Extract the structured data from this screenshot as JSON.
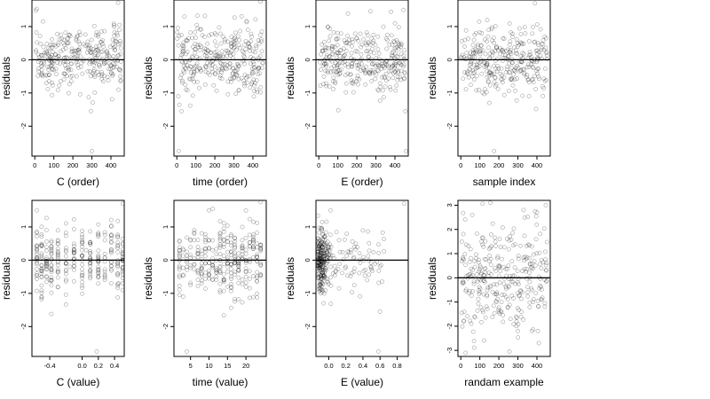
{
  "chart_data": [
    {
      "type": "scatter",
      "xlabel": "C (order)",
      "ylabel": "residuals",
      "x_ticks": [
        0,
        100,
        200,
        300,
        400
      ],
      "x_tick_labels": [
        "0",
        "100",
        "200",
        "300",
        "400"
      ],
      "xlim": [
        -15,
        470
      ],
      "y_ticks": [
        1,
        0,
        -1,
        -2
      ],
      "y_tick_labels": [
        "1",
        "0",
        "-1",
        "-2"
      ],
      "ylim": [
        -2.9,
        1.8
      ],
      "reference_line": 0,
      "point_color": "#000000",
      "points": [
        {
          "x": 5,
          "y": 1.48
        },
        {
          "x": 12,
          "y": 0.52
        },
        {
          "x": 20,
          "y": -0.35
        },
        {
          "x": 30,
          "y": 0.48
        },
        {
          "x": 60,
          "y": 0.25
        },
        {
          "x": 95,
          "y": -0.12
        },
        {
          "x": 130,
          "y": 0.62
        },
        {
          "x": 180,
          "y": -0.28
        },
        {
          "x": 210,
          "y": 0.18
        },
        {
          "x": 250,
          "y": -0.42
        },
        {
          "x": 275,
          "y": 0.22
        },
        {
          "x": 295,
          "y": -1.55
        },
        {
          "x": 300,
          "y": -2.75
        },
        {
          "x": 330,
          "y": 0.3
        },
        {
          "x": 360,
          "y": -0.65
        },
        {
          "x": 410,
          "y": 0.45
        },
        {
          "x": 438,
          "y": 1.72
        },
        {
          "x": 445,
          "y": 1.05
        },
        {
          "x": 450,
          "y": -0.5
        }
      ]
    },
    {
      "type": "scatter",
      "xlabel": "time (order)",
      "ylabel": "residuals",
      "x_ticks": [
        0,
        100,
        200,
        300,
        400
      ],
      "x_tick_labels": [
        "0",
        "100",
        "200",
        "300",
        "400"
      ],
      "xlim": [
        -15,
        470
      ],
      "y_ticks": [
        1,
        0,
        -1,
        -2
      ],
      "y_tick_labels": [
        "1",
        "0",
        "-1",
        "-2"
      ],
      "ylim": [
        -2.9,
        1.8
      ],
      "reference_line": 0,
      "point_color": "#000000",
      "points": [
        {
          "x": 8,
          "y": -1.1
        },
        {
          "x": 25,
          "y": -1.55
        },
        {
          "x": 40,
          "y": 1.3
        },
        {
          "x": 70,
          "y": -0.2
        },
        {
          "x": 110,
          "y": 0.45
        },
        {
          "x": 150,
          "y": -0.75
        },
        {
          "x": 200,
          "y": 0.55
        },
        {
          "x": 240,
          "y": -0.3
        },
        {
          "x": 280,
          "y": 0.2
        },
        {
          "x": 340,
          "y": -0.55
        },
        {
          "x": 380,
          "y": 0.4
        },
        {
          "x": 420,
          "y": -0.9
        },
        {
          "x": 440,
          "y": 1.75
        },
        {
          "x": 455,
          "y": -0.1
        },
        {
          "x": 10,
          "y": -2.75
        }
      ]
    },
    {
      "type": "scatter",
      "xlabel": "E (order)",
      "ylabel": "residuals",
      "x_ticks": [
        0,
        100,
        200,
        300,
        400
      ],
      "x_tick_labels": [
        "0",
        "100",
        "200",
        "300",
        "400"
      ],
      "xlim": [
        -15,
        470
      ],
      "y_ticks": [
        1,
        0,
        -1,
        -2
      ],
      "y_tick_labels": [
        "1",
        "0",
        "-1",
        "-2"
      ],
      "ylim": [
        -2.9,
        1.8
      ],
      "reference_line": 0,
      "point_color": "#000000",
      "points": [
        {
          "x": 10,
          "y": -0.3
        },
        {
          "x": 50,
          "y": 0.35
        },
        {
          "x": 100,
          "y": -0.45
        },
        {
          "x": 160,
          "y": 0.6
        },
        {
          "x": 210,
          "y": -0.2
        },
        {
          "x": 260,
          "y": 0.1
        },
        {
          "x": 310,
          "y": -0.9
        },
        {
          "x": 360,
          "y": 0.75
        },
        {
          "x": 400,
          "y": 1.1
        },
        {
          "x": 445,
          "y": 1.5
        },
        {
          "x": 455,
          "y": -1.55
        },
        {
          "x": 458,
          "y": -2.75
        }
      ]
    },
    {
      "type": "scatter",
      "xlabel": "sample index",
      "ylabel": "residuals",
      "x_ticks": [
        0,
        100,
        200,
        300,
        400
      ],
      "x_tick_labels": [
        "0",
        "100",
        "200",
        "300",
        "400"
      ],
      "xlim": [
        -15,
        470
      ],
      "y_ticks": [
        1,
        0,
        -1,
        -2
      ],
      "y_tick_labels": [
        "1",
        "0",
        "-1",
        "-2"
      ],
      "ylim": [
        -2.9,
        1.8
      ],
      "reference_line": 0,
      "point_color": "#000000",
      "points": [
        {
          "x": 20,
          "y": 0.4
        },
        {
          "x": 60,
          "y": -0.5
        },
        {
          "x": 110,
          "y": 0.8
        },
        {
          "x": 150,
          "y": -1.3
        },
        {
          "x": 175,
          "y": -2.75
        },
        {
          "x": 220,
          "y": 0.3
        },
        {
          "x": 270,
          "y": -0.6
        },
        {
          "x": 320,
          "y": 0.5
        },
        {
          "x": 390,
          "y": 1.7
        },
        {
          "x": 430,
          "y": -0.8
        },
        {
          "x": 450,
          "y": 0.2
        }
      ]
    },
    {
      "type": "scatter",
      "xlabel": "C (value)",
      "ylabel": "residuals",
      "x_ticks": [
        -0.4,
        0.0,
        0.2,
        0.4
      ],
      "x_tick_labels": [
        "-0.4",
        "0.0",
        "0.2",
        "0.4"
      ],
      "xlim": [
        -0.62,
        0.52
      ],
      "y_ticks": [
        1,
        0,
        -1,
        -2
      ],
      "y_tick_labels": [
        "1",
        "0",
        "-1",
        "-2"
      ],
      "ylim": [
        -2.9,
        1.8
      ],
      "reference_line": 0,
      "point_color": "#000000",
      "points": [
        {
          "x": -0.56,
          "y": 1.5
        },
        {
          "x": -0.56,
          "y": 0.4
        },
        {
          "x": -0.56,
          "y": -0.4
        },
        {
          "x": -0.5,
          "y": 0.2
        },
        {
          "x": -0.4,
          "y": -0.6
        },
        {
          "x": -0.3,
          "y": 0.5
        },
        {
          "x": -0.15,
          "y": -0.2
        },
        {
          "x": 0.05,
          "y": 0.3
        },
        {
          "x": 0.18,
          "y": -2.75
        },
        {
          "x": 0.28,
          "y": 0.6
        },
        {
          "x": 0.45,
          "y": -0.7
        },
        {
          "x": 0.5,
          "y": 1.7
        },
        {
          "x": 0.5,
          "y": 0.1
        }
      ]
    },
    {
      "type": "scatter",
      "xlabel": "time (value)",
      "ylabel": "residuals",
      "x_ticks": [
        5,
        10,
        15,
        20
      ],
      "x_tick_labels": [
        "5",
        "10",
        "15",
        "20"
      ],
      "xlim": [
        0.5,
        25.5
      ],
      "y_ticks": [
        1,
        0,
        -1,
        -2
      ],
      "y_tick_labels": [
        "1",
        "0",
        "-1",
        "-2"
      ],
      "ylim": [
        -2.9,
        1.8
      ],
      "reference_line": 0,
      "point_color": "#000000",
      "points": [
        {
          "x": 2,
          "y": 0.3
        },
        {
          "x": 3,
          "y": -1.1
        },
        {
          "x": 4,
          "y": -2.75
        },
        {
          "x": 6,
          "y": 0.6
        },
        {
          "x": 8,
          "y": -0.4
        },
        {
          "x": 10,
          "y": 1.5
        },
        {
          "x": 12,
          "y": -0.3
        },
        {
          "x": 14,
          "y": 0.4
        },
        {
          "x": 16,
          "y": -0.8
        },
        {
          "x": 18,
          "y": 0.2
        },
        {
          "x": 20,
          "y": -0.5
        },
        {
          "x": 22,
          "y": 0.7
        },
        {
          "x": 24,
          "y": 1.75
        }
      ]
    },
    {
      "type": "scatter",
      "xlabel": "E (value)",
      "ylabel": "residuals",
      "x_ticks": [
        0.0,
        0.2,
        0.4,
        0.6,
        0.8
      ],
      "x_tick_labels": [
        "0.0",
        "0.2",
        "0.4",
        "0.6",
        "0.8"
      ],
      "xlim": [
        -0.15,
        0.93
      ],
      "y_ticks": [
        1,
        0,
        -1,
        -2
      ],
      "y_tick_labels": [
        "1",
        "0",
        "-1",
        "-2"
      ],
      "ylim": [
        -2.9,
        1.8
      ],
      "reference_line": 0,
      "point_color": "#000000",
      "points": [
        {
          "x": -0.12,
          "y": 0.5
        },
        {
          "x": -0.1,
          "y": -0.3
        },
        {
          "x": -0.08,
          "y": 0.9
        },
        {
          "x": -0.05,
          "y": -1.0
        },
        {
          "x": -0.02,
          "y": 0.2
        },
        {
          "x": 0.02,
          "y": 1.5
        },
        {
          "x": 0.05,
          "y": -0.4
        },
        {
          "x": 0.12,
          "y": 0.6
        },
        {
          "x": 0.2,
          "y": -0.2
        },
        {
          "x": 0.3,
          "y": 0.4
        },
        {
          "x": 0.45,
          "y": -0.6
        },
        {
          "x": 0.6,
          "y": -1.55
        },
        {
          "x": 0.58,
          "y": -2.75
        },
        {
          "x": 0.88,
          "y": 1.7
        }
      ]
    },
    {
      "type": "scatter",
      "xlabel": "randam example",
      "ylabel": "residuals",
      "x_ticks": [
        0,
        100,
        200,
        300,
        400
      ],
      "x_tick_labels": [
        "0",
        "100",
        "200",
        "300",
        "400"
      ],
      "xlim": [
        -15,
        470
      ],
      "y_ticks": [
        3,
        2,
        1,
        0,
        -1,
        -2,
        -3
      ],
      "y_tick_labels": [
        "3",
        "2",
        "1",
        "0",
        "-1",
        "-2",
        "-3"
      ],
      "ylim": [
        -3.25,
        3.2
      ],
      "reference_line": 0,
      "point_color": "#000000",
      "points": [
        {
          "x": 5,
          "y": 1.5
        },
        {
          "x": 15,
          "y": -1.8
        },
        {
          "x": 25,
          "y": -3.1
        },
        {
          "x": 60,
          "y": 2.6
        },
        {
          "x": 100,
          "y": -0.6
        },
        {
          "x": 150,
          "y": 1.2
        },
        {
          "x": 200,
          "y": -1.4
        },
        {
          "x": 250,
          "y": 0.5
        },
        {
          "x": 300,
          "y": -2.2
        },
        {
          "x": 330,
          "y": 2.8
        },
        {
          "x": 380,
          "y": -1.0
        },
        {
          "x": 400,
          "y": 2.7
        },
        {
          "x": 410,
          "y": -2.7
        },
        {
          "x": 450,
          "y": 0.3
        }
      ]
    }
  ]
}
